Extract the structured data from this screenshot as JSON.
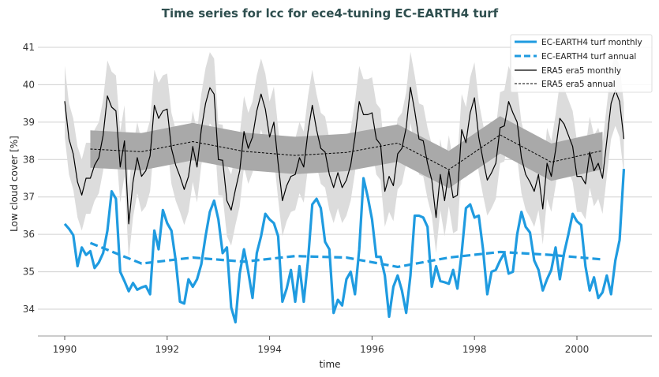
{
  "chart_data": {
    "type": "line",
    "title": "Time series for lcc for ece4-tuning EC-EARTH4 turf",
    "xlabel": "time",
    "ylabel": "Low cloud cover [%]",
    "xlim": [
      1989.5,
      2001.5
    ],
    "ylim": [
      33.3,
      41.4
    ],
    "xticks": [
      1990,
      1992,
      1994,
      1996,
      1998,
      2000
    ],
    "yticks": [
      34,
      35,
      36,
      37,
      38,
      39,
      40,
      41
    ],
    "grid": "horizontal",
    "legend_position": "top-right",
    "colors": {
      "model": "#1f9be0",
      "ref": "#000000",
      "ref_band_monthly": "#dcdcdc",
      "ref_band_annual": "#a9a9a9"
    },
    "monthly_start": "1990-01",
    "series": [
      {
        "name": "EC-EARTH4 turf monthly",
        "style": "solid",
        "values": [
          36.28,
          36.15,
          35.98,
          35.15,
          35.65,
          35.45,
          35.55,
          35.1,
          35.25,
          35.5,
          36.1,
          37.15,
          36.95,
          35.0,
          34.75,
          34.48,
          34.7,
          34.52,
          34.58,
          34.62,
          34.4,
          36.1,
          35.6,
          36.65,
          36.3,
          36.1,
          35.3,
          34.2,
          34.15,
          34.8,
          34.6,
          34.8,
          35.2,
          35.95,
          36.6,
          36.9,
          36.4,
          35.5,
          35.65,
          34.05,
          33.65,
          34.95,
          35.6,
          35.0,
          34.3,
          35.5,
          35.95,
          36.55,
          36.4,
          36.3,
          35.95,
          34.2,
          34.55,
          35.05,
          34.2,
          35.15,
          34.2,
          35.3,
          36.8,
          36.95,
          36.7,
          35.8,
          35.6,
          33.9,
          34.25,
          34.1,
          34.8,
          35.0,
          34.4,
          35.6,
          37.5,
          37.0,
          36.4,
          35.4,
          35.4,
          34.9,
          33.8,
          34.6,
          34.9,
          34.5,
          33.9,
          34.9,
          36.5,
          36.5,
          36.45,
          36.2,
          34.6,
          35.15,
          34.75,
          34.72,
          34.68,
          35.05,
          34.55,
          35.5,
          36.7,
          36.8,
          36.45,
          36.5,
          35.6,
          34.4,
          35.0,
          35.05,
          35.3,
          35.5,
          34.95,
          35.0,
          36.0,
          36.6,
          36.2,
          36.05,
          35.3,
          35.05,
          34.5,
          34.8,
          35.05,
          35.65,
          34.8,
          35.5,
          36.0,
          36.55,
          36.35,
          36.25,
          35.15,
          34.5,
          34.85,
          34.3,
          34.45,
          34.9,
          34.4,
          35.3,
          35.85,
          37.75
        ]
      },
      {
        "name": "EC-EARTH4 turf annual",
        "style": "dashed",
        "x": [
          1990.5,
          1991.5,
          1992.5,
          1993.5,
          1994.5,
          1995.5,
          1996.5,
          1997.5,
          1998.5,
          1999.5,
          2000.5
        ],
        "values": [
          35.77,
          35.22,
          35.38,
          35.27,
          35.42,
          35.38,
          35.13,
          35.38,
          35.53,
          35.45,
          35.33
        ]
      },
      {
        "name": "ERA5 era5 monthly",
        "style": "solid",
        "band": 0.95,
        "values": [
          39.56,
          38.55,
          38.15,
          37.4,
          37.05,
          37.5,
          37.5,
          37.85,
          38.05,
          38.65,
          39.7,
          39.4,
          39.3,
          37.8,
          38.5,
          36.28,
          37.4,
          38.05,
          37.55,
          37.7,
          38.1,
          39.45,
          39.1,
          39.3,
          39.35,
          38.3,
          37.85,
          37.55,
          37.2,
          37.55,
          38.35,
          37.8,
          38.8,
          39.5,
          39.92,
          39.75,
          38.0,
          37.98,
          36.9,
          36.65,
          37.2,
          37.7,
          38.75,
          38.3,
          38.6,
          39.3,
          39.75,
          39.35,
          38.6,
          39.0,
          37.9,
          36.9,
          37.3,
          37.55,
          37.6,
          38.05,
          37.8,
          38.75,
          39.45,
          38.8,
          38.3,
          38.2,
          37.6,
          37.25,
          37.65,
          37.25,
          37.45,
          37.85,
          38.6,
          39.55,
          39.2,
          39.2,
          39.25,
          38.55,
          38.4,
          37.15,
          37.55,
          37.3,
          38.15,
          38.3,
          38.85,
          39.93,
          39.3,
          38.55,
          38.5,
          37.9,
          37.45,
          36.45,
          37.6,
          36.9,
          37.7,
          36.98,
          37.05,
          38.8,
          38.45,
          39.25,
          39.65,
          38.6,
          38.0,
          37.45,
          37.65,
          37.9,
          38.85,
          38.9,
          39.55,
          39.25,
          39.0,
          38.05,
          37.6,
          37.4,
          37.15,
          37.6,
          36.68,
          37.9,
          37.55,
          38.25,
          39.1,
          38.95,
          38.65,
          38.35,
          37.55,
          37.55,
          37.35,
          38.2,
          37.7,
          37.9,
          37.5,
          38.5,
          39.5,
          39.85,
          39.55,
          38.55
        ]
      },
      {
        "name": "ERA5 era5 annual",
        "style": "dashed",
        "band": 0.5,
        "x": [
          1990.5,
          1991.5,
          1992.5,
          1993.5,
          1994.5,
          1995.5,
          1996.5,
          1997.5,
          1998.5,
          1999.5,
          2000.5
        ],
        "values": [
          38.28,
          38.21,
          38.48,
          38.22,
          38.11,
          38.19,
          38.44,
          37.73,
          38.66,
          37.93,
          38.24
        ]
      }
    ]
  }
}
